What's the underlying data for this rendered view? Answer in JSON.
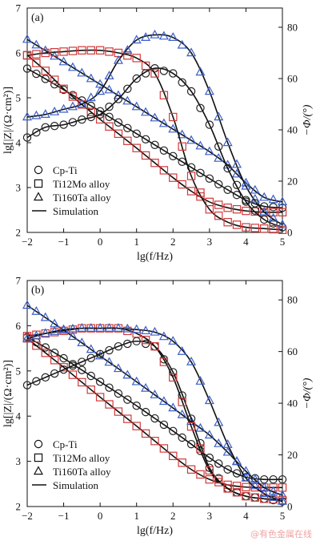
{
  "watermark": "@有色金属在线",
  "chart_data": [
    {
      "type": "line",
      "panel_label": "(a)",
      "xlabel": "lg(f/Hz)",
      "ylabel": "lg[|Z|/(Ω·cm²)]",
      "ylabel_right": "−Φ/(°)",
      "xlim": [
        -2,
        5
      ],
      "ylim": [
        2,
        7
      ],
      "ylim_right": [
        0,
        87.5
      ],
      "x_ticks": [
        -2,
        -1,
        0,
        1,
        2,
        3,
        4,
        5
      ],
      "y_ticks": [
        2,
        3,
        4,
        5,
        6,
        7
      ],
      "y_ticks_right": [
        0,
        20,
        40,
        60,
        80
      ],
      "legend": [
        "Cp-Ti",
        "Ti12Mo alloy",
        "Ti160Ta alloy",
        "Simulation"
      ],
      "legend_position": "lower-left",
      "x": [
        -2.0,
        -1.5,
        -1.0,
        -0.5,
        0.0,
        0.5,
        1.0,
        1.5,
        2.0,
        2.5,
        3.0,
        3.5,
        4.0,
        4.5,
        5.0
      ],
      "series": [
        {
          "name": "Cp-Ti",
          "quantity": "lg|Z|",
          "marker": "circle",
          "color": "#222222",
          "values": [
            5.65,
            5.42,
            5.18,
            4.94,
            4.7,
            4.45,
            4.2,
            3.95,
            3.7,
            3.45,
            3.2,
            2.95,
            2.72,
            2.58,
            2.55
          ]
        },
        {
          "name": "Ti12Mo alloy",
          "quantity": "lg|Z|",
          "marker": "square",
          "color": "#d03a3a",
          "values": [
            5.95,
            5.6,
            5.2,
            4.85,
            4.52,
            4.2,
            3.88,
            3.55,
            3.22,
            2.92,
            2.68,
            2.55,
            2.48,
            2.45,
            2.45
          ]
        },
        {
          "name": "Ti160Ta alloy",
          "quantity": "lg|Z|",
          "marker": "triangle",
          "color": "#3a5fc8",
          "values": [
            6.3,
            6.05,
            5.8,
            5.55,
            5.3,
            5.05,
            4.8,
            4.55,
            4.3,
            4.05,
            3.8,
            3.5,
            3.1,
            2.78,
            2.68
          ]
        },
        {
          "name": "Cp-Ti",
          "quantity": "-Phi",
          "marker": "circle",
          "color": "#222222",
          "values": [
            37,
            41,
            42,
            44,
            46,
            52,
            60,
            64,
            62,
            55,
            42,
            25,
            12,
            5,
            2
          ]
        },
        {
          "name": "Ti12Mo alloy",
          "quantity": "-Phi",
          "marker": "square",
          "color": "#d03a3a",
          "values": [
            69,
            70,
            70.5,
            71,
            71,
            70,
            68,
            62,
            45,
            22,
            9,
            4,
            2,
            1.5,
            1
          ]
        },
        {
          "name": "Ti160Ta alloy",
          "quantity": "-Phi",
          "marker": "triangle",
          "color": "#3a5fc8",
          "values": [
            45,
            46,
            48,
            50,
            55,
            67,
            75,
            77,
            76,
            70,
            55,
            35,
            18,
            8,
            3
          ]
        }
      ]
    },
    {
      "type": "line",
      "panel_label": "(b)",
      "xlabel": "lg(f/Hz)",
      "ylabel": "lg[|Z|/(Ω·cm²)]",
      "ylabel_right": "−Φ/(°)",
      "xlim": [
        -2,
        5
      ],
      "ylim": [
        2,
        7
      ],
      "ylim_right": [
        0,
        87.5
      ],
      "x_ticks": [
        -2,
        -1,
        0,
        1,
        2,
        3,
        4,
        5
      ],
      "y_ticks": [
        2,
        3,
        4,
        5,
        6,
        7
      ],
      "y_ticks_right": [
        0,
        20,
        40,
        60,
        80
      ],
      "legend": [
        "Cp-Ti",
        "Ti12Mo alloy",
        "Ti160Ta alloy",
        "Simulation"
      ],
      "legend_position": "lower-left",
      "x": [
        -2.0,
        -1.5,
        -1.0,
        -0.5,
        0.0,
        0.5,
        1.0,
        1.5,
        2.0,
        2.5,
        3.0,
        3.5,
        4.0,
        4.5,
        5.0
      ],
      "series": [
        {
          "name": "Cp-Ti",
          "quantity": "lg|Z|",
          "marker": "circle",
          "color": "#222222",
          "values": [
            5.75,
            5.52,
            5.28,
            5.02,
            4.76,
            4.5,
            4.23,
            3.95,
            3.67,
            3.38,
            3.08,
            2.82,
            2.65,
            2.6,
            2.6
          ]
        },
        {
          "name": "Ti12Mo alloy",
          "quantity": "lg|Z|",
          "marker": "square",
          "color": "#d03a3a",
          "values": [
            5.72,
            5.4,
            5.08,
            4.75,
            4.42,
            4.1,
            3.78,
            3.45,
            3.12,
            2.82,
            2.6,
            2.48,
            2.43,
            2.42,
            2.42
          ]
        },
        {
          "name": "Ti160Ta alloy",
          "quantity": "lg|Z|",
          "marker": "triangle",
          "color": "#3a5fc8",
          "values": [
            6.45,
            6.18,
            5.9,
            5.62,
            5.33,
            5.05,
            4.76,
            4.47,
            4.18,
            3.88,
            3.58,
            3.2,
            2.78,
            2.42,
            2.25
          ]
        },
        {
          "name": "Cp-Ti",
          "quantity": "-Phi",
          "marker": "circle",
          "color": "#222222",
          "values": [
            47,
            50,
            53,
            56,
            59,
            62,
            64,
            62,
            52,
            34,
            15,
            7,
            4,
            3,
            2
          ]
        },
        {
          "name": "Ti12Mo alloy",
          "quantity": "-Phi",
          "marker": "square",
          "color": "#d03a3a",
          "values": [
            66,
            67,
            68,
            69,
            69,
            69,
            67,
            62,
            50,
            31,
            14,
            7,
            4,
            3,
            2.5
          ]
        },
        {
          "name": "Ti160Ta alloy",
          "quantity": "-Phi",
          "marker": "triangle",
          "color": "#3a5fc8",
          "values": [
            65,
            67,
            68.5,
            69,
            69,
            69,
            68.5,
            67.5,
            64,
            56,
            41,
            24,
            11,
            5,
            2
          ]
        }
      ]
    }
  ]
}
